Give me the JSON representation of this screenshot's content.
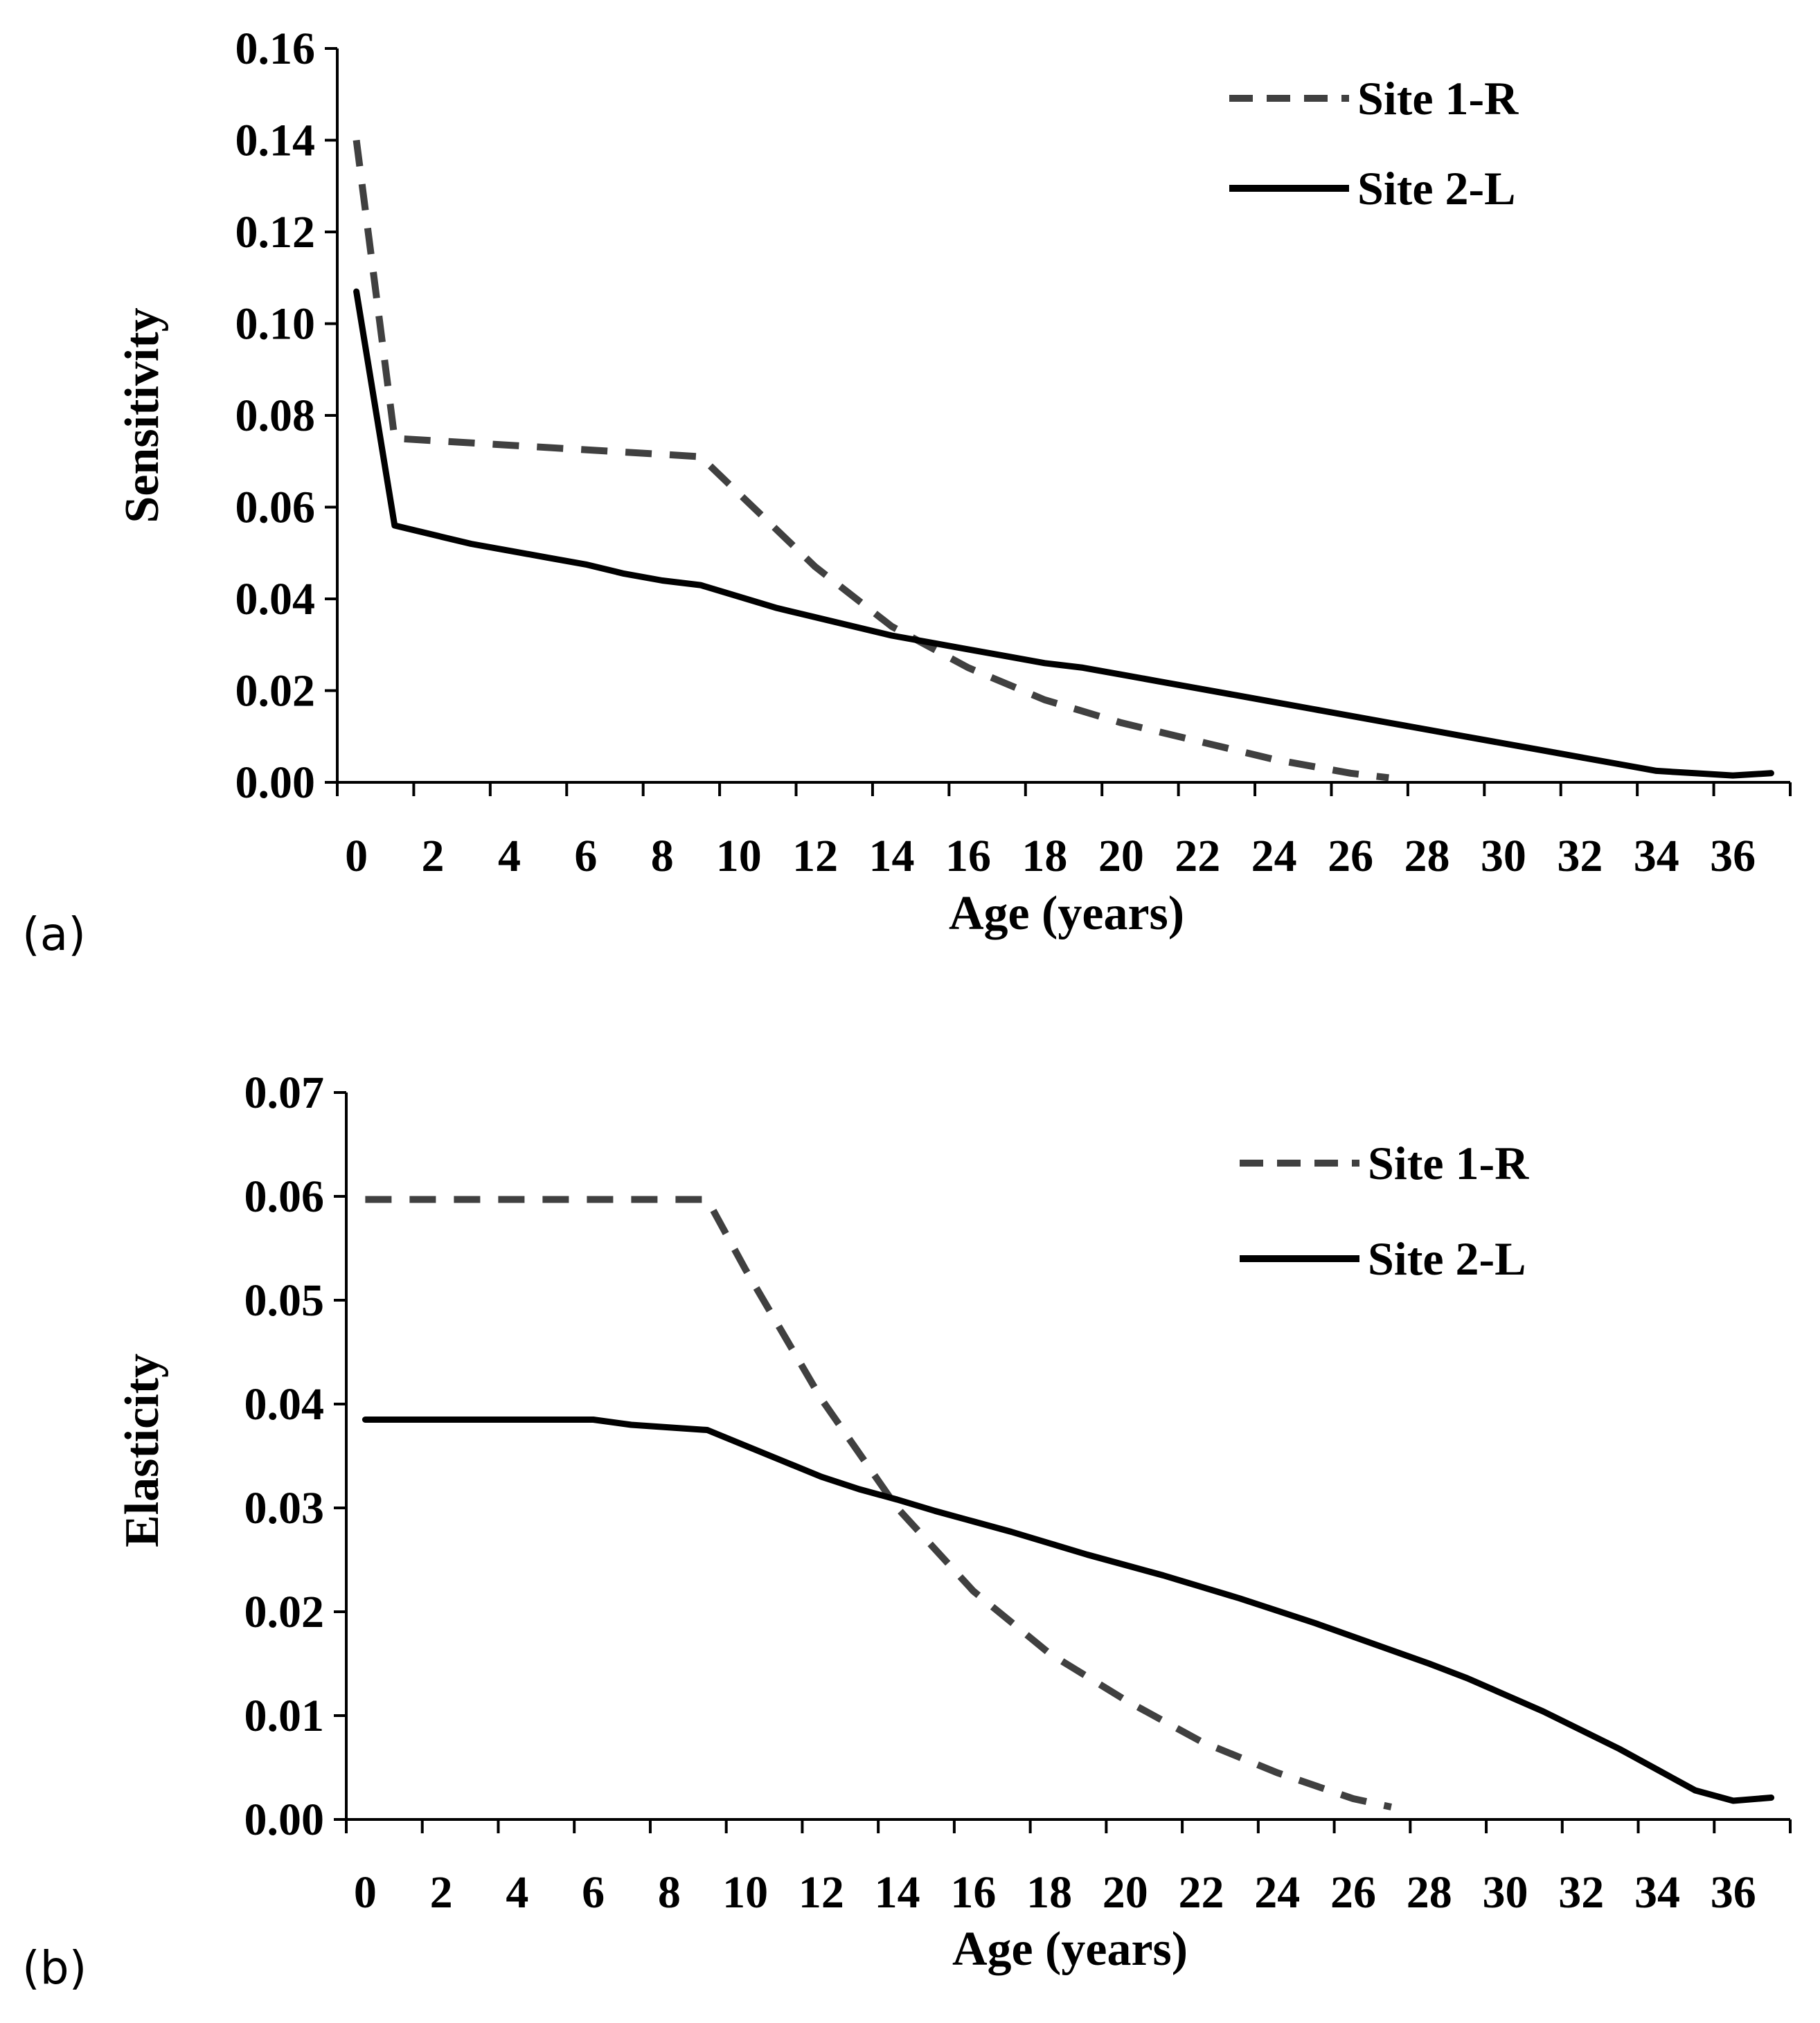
{
  "chart_data": [
    {
      "type": "line",
      "panel_label": "(a)",
      "ylabel": "Sensitivity",
      "xlabel": "Age (years)",
      "ylim": [
        0,
        0.16
      ],
      "xlim": [
        -0.5,
        37.5
      ],
      "y_ticks": [
        "0.00",
        "0.02",
        "0.04",
        "0.06",
        "0.08",
        "0.10",
        "0.12",
        "0.14",
        "0.16"
      ],
      "x_tick_labels": [
        "0",
        "2",
        "4",
        "6",
        "8",
        "10",
        "12",
        "14",
        "16",
        "18",
        "20",
        "22",
        "24",
        "26",
        "28",
        "30",
        "32",
        "34",
        "36"
      ],
      "grid": false,
      "legend_position": "top-right",
      "series": [
        {
          "name": "Site 1-R",
          "style": "dashed",
          "color": "#404040",
          "x": [
            0,
            1,
            9,
            10,
            12,
            14,
            16,
            18,
            20,
            22,
            24,
            26,
            27
          ],
          "y": [
            0.14,
            0.075,
            0.071,
            0.063,
            0.047,
            0.034,
            0.025,
            0.018,
            0.013,
            0.009,
            0.005,
            0.002,
            0.001
          ]
        },
        {
          "name": "Site 2-L",
          "style": "solid",
          "color": "#000000",
          "x": [
            0,
            1,
            2,
            3,
            4,
            5,
            6,
            7,
            8,
            9,
            10,
            11,
            12,
            13,
            14,
            15,
            16,
            17,
            18,
            19,
            20,
            21,
            22,
            23,
            24,
            25,
            26,
            27,
            28,
            29,
            30,
            31,
            32,
            33,
            34,
            35,
            36,
            37
          ],
          "y": [
            0.107,
            0.056,
            0.054,
            0.052,
            0.0505,
            0.049,
            0.0475,
            0.0455,
            0.044,
            0.043,
            0.0405,
            0.038,
            0.036,
            0.034,
            0.032,
            0.0305,
            0.029,
            0.0275,
            0.026,
            0.025,
            0.0235,
            0.022,
            0.0205,
            0.019,
            0.0175,
            0.016,
            0.0145,
            0.013,
            0.0115,
            0.01,
            0.0085,
            0.007,
            0.0055,
            0.004,
            0.0025,
            0.002,
            0.0015,
            0.002
          ]
        }
      ]
    },
    {
      "type": "line",
      "panel_label": "(b)",
      "ylabel": "Elasticity",
      "xlabel": "Age (years)",
      "ylim": [
        0,
        0.07
      ],
      "xlim": [
        -0.5,
        37.5
      ],
      "y_ticks": [
        "0.00",
        "0.01",
        "0.02",
        "0.03",
        "0.04",
        "0.05",
        "0.06",
        "0.07"
      ],
      "x_tick_labels": [
        "0",
        "2",
        "4",
        "6",
        "8",
        "10",
        "12",
        "14",
        "16",
        "18",
        "20",
        "22",
        "24",
        "26",
        "28",
        "30",
        "32",
        "34",
        "36"
      ],
      "grid": false,
      "legend_position": "top-right",
      "series": [
        {
          "name": "Site 1-R",
          "style": "dashed",
          "color": "#404040",
          "x": [
            0,
            9,
            10,
            12,
            14,
            16,
            18,
            20,
            22,
            24,
            26,
            27
          ],
          "y": [
            0.0597,
            0.0597,
            0.053,
            0.0405,
            0.03,
            0.022,
            0.016,
            0.0115,
            0.0075,
            0.0045,
            0.002,
            0.0012
          ]
        },
        {
          "name": "Site 2-L",
          "style": "solid",
          "color": "#000000",
          "x": [
            0,
            6,
            7,
            9,
            10,
            11,
            12,
            13,
            14,
            15,
            16,
            17,
            18,
            19,
            20,
            21,
            22,
            23,
            24,
            25,
            26,
            27,
            28,
            29,
            30,
            31,
            32,
            33,
            34,
            35,
            36,
            37
          ],
          "y": [
            0.0385,
            0.0385,
            0.038,
            0.0375,
            0.036,
            0.0345,
            0.033,
            0.0318,
            0.0308,
            0.0297,
            0.0287,
            0.0277,
            0.0266,
            0.0255,
            0.0245,
            0.0235,
            0.0224,
            0.0213,
            0.0201,
            0.0189,
            0.0176,
            0.0163,
            0.015,
            0.0136,
            0.012,
            0.0104,
            0.0086,
            0.0068,
            0.0048,
            0.0028,
            0.0018,
            0.0021
          ]
        }
      ]
    }
  ]
}
